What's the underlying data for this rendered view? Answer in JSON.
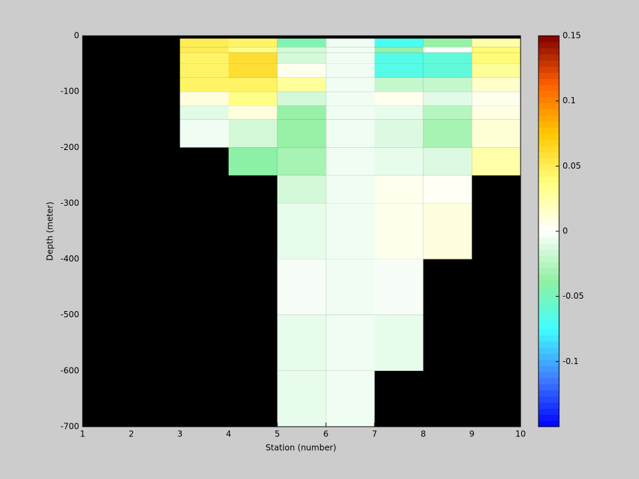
{
  "chart_data": {
    "type": "heatmap",
    "xlabel": "Station (number)",
    "ylabel": "Depth (meter)",
    "x": [
      1,
      2,
      3,
      4,
      5,
      6,
      7,
      8,
      9,
      10
    ],
    "y": [
      0,
      -5,
      -20,
      -30,
      -50,
      -75,
      -100,
      -125,
      -150,
      -200,
      -250,
      -300,
      -400,
      -500,
      -600,
      -700
    ],
    "values": [
      [
        null,
        null,
        null,
        null,
        null,
        null,
        null,
        null,
        null
      ],
      [
        null,
        null,
        0.05,
        0.045,
        -0.045,
        -0.005,
        -0.07,
        -0.035,
        0.025
      ],
      [
        null,
        null,
        0.05,
        0.035,
        -0.015,
        -0.005,
        -0.035,
        0.002,
        0.04
      ],
      [
        null,
        null,
        0.045,
        0.06,
        -0.015,
        -0.005,
        -0.065,
        -0.06,
        0.04
      ],
      [
        null,
        null,
        0.045,
        0.06,
        0.005,
        -0.005,
        -0.065,
        -0.06,
        0.03
      ],
      [
        null,
        null,
        0.045,
        0.045,
        0.03,
        -0.005,
        -0.02,
        -0.02,
        0.015
      ],
      [
        null,
        null,
        0.01,
        0.035,
        -0.015,
        -0.005,
        0.005,
        -0.01,
        0.005
      ],
      [
        null,
        null,
        -0.01,
        0.01,
        -0.035,
        -0.005,
        -0.008,
        -0.025,
        0.008
      ],
      [
        null,
        null,
        -0.005,
        -0.015,
        -0.035,
        -0.005,
        -0.012,
        -0.03,
        0.012
      ],
      [
        null,
        null,
        null,
        -0.04,
        -0.03,
        -0.005,
        -0.008,
        -0.012,
        0.025
      ],
      [
        null,
        null,
        null,
        null,
        -0.015,
        -0.005,
        0.005,
        0.003,
        null
      ],
      [
        null,
        null,
        null,
        null,
        -0.008,
        -0.005,
        0.005,
        0.01,
        null
      ],
      [
        null,
        null,
        null,
        null,
        -0.003,
        -0.005,
        -0.003,
        null,
        null
      ],
      [
        null,
        null,
        null,
        null,
        -0.008,
        -0.005,
        -0.008,
        null,
        null
      ],
      [
        null,
        null,
        null,
        null,
        -0.008,
        -0.005,
        null,
        null,
        null
      ]
    ],
    "xlim": [
      1,
      10
    ],
    "xticks": [
      1,
      2,
      3,
      4,
      5,
      6,
      7,
      8,
      9,
      10
    ],
    "ylim": [
      -700,
      0
    ],
    "yticks": [
      0,
      -100,
      -200,
      -300,
      -400,
      -500,
      -600,
      -700
    ],
    "clim": [
      -0.15,
      0.15
    ],
    "cticks": [
      -0.1,
      -0.05,
      0,
      0.05,
      0.1,
      0.15
    ],
    "colormap": [
      "#0000ff",
      "#4080ff",
      "#40ffff",
      "#90f0a0",
      "#ffffff",
      "#ffff80",
      "#ffc800",
      "#ff6000",
      "#800000"
    ],
    "background": "#000000"
  }
}
